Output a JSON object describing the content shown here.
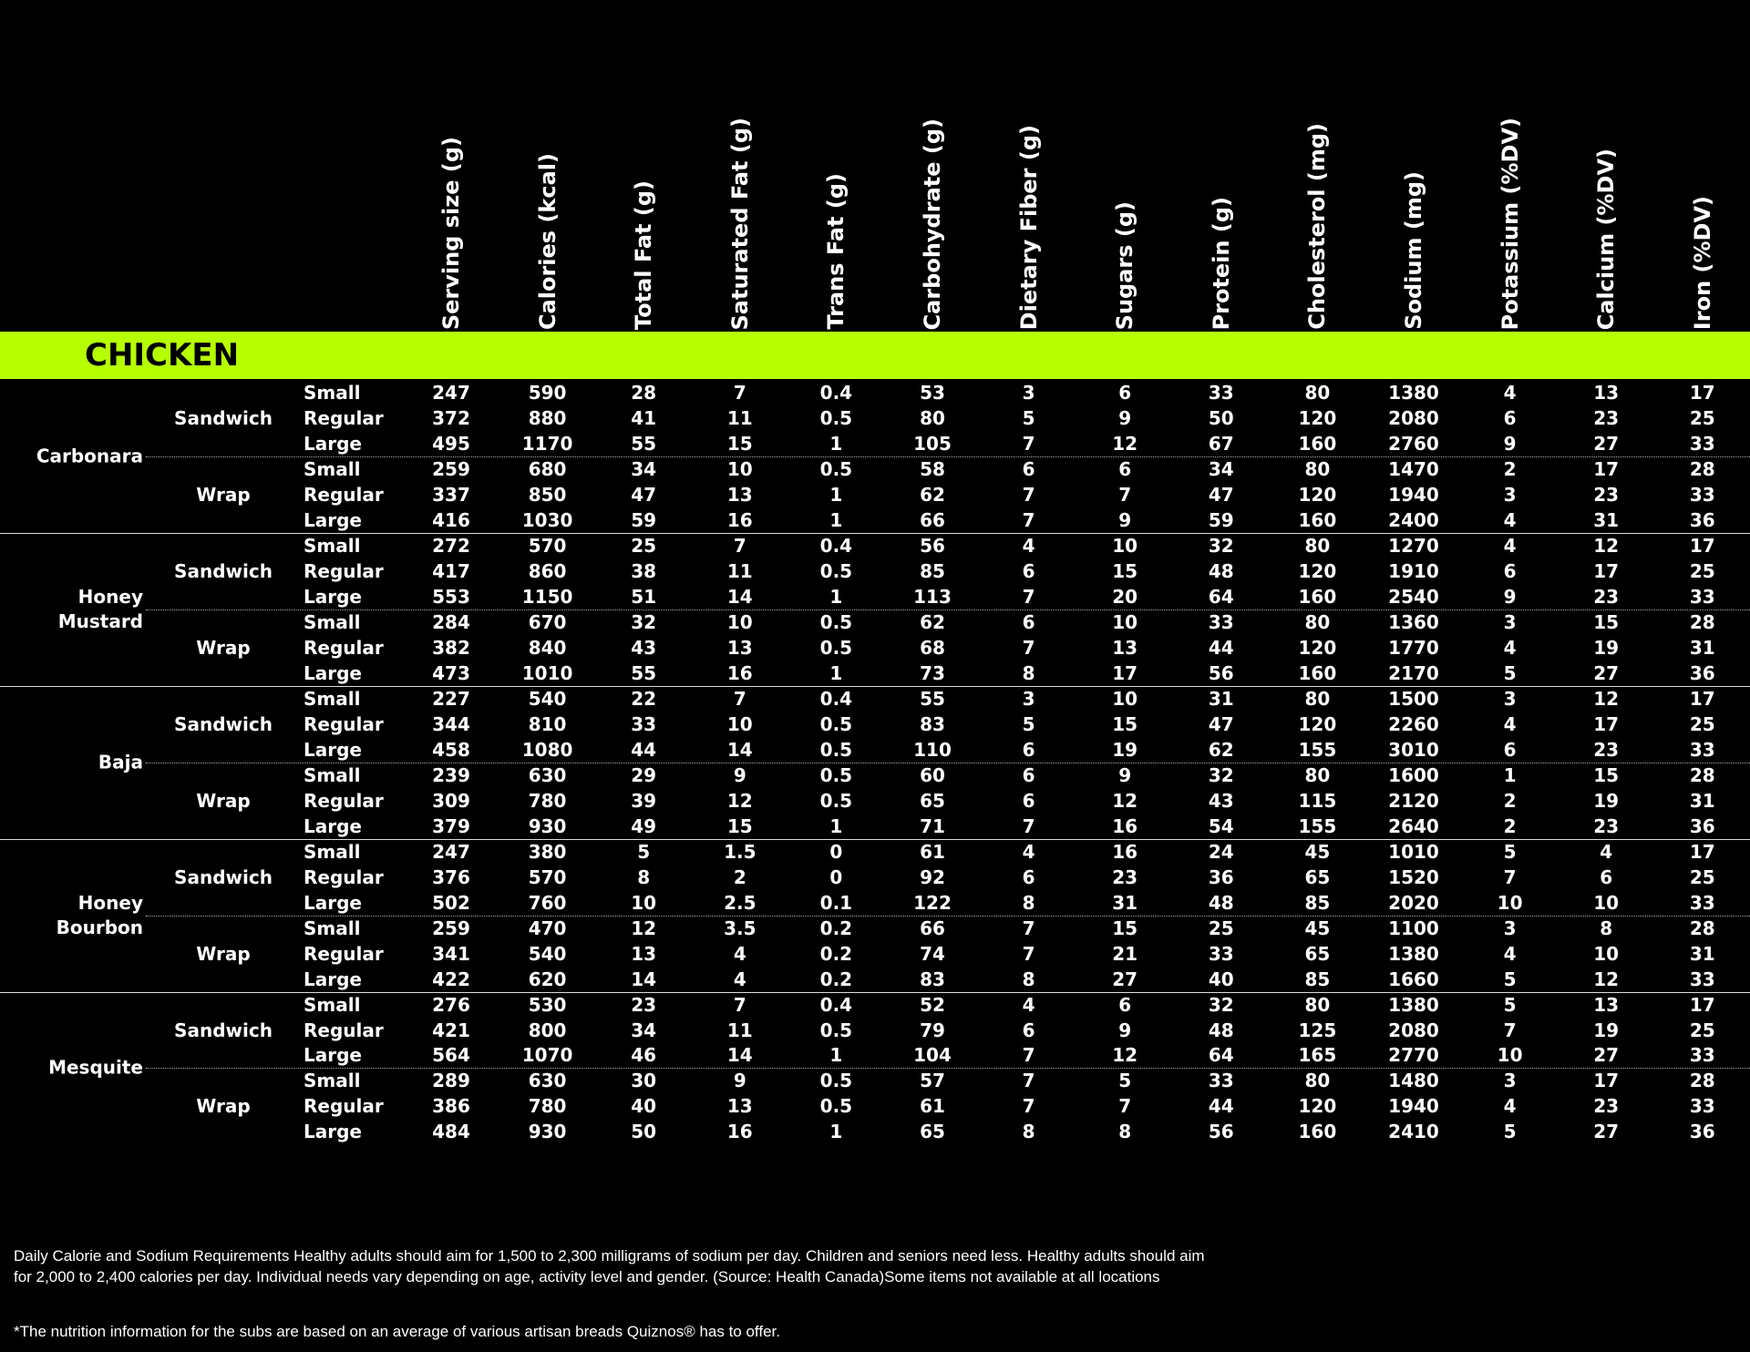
{
  "headers": [
    "Serving size (g)",
    "Calories (kcal)",
    "Total Fat (g)",
    "Saturated Fat (g)",
    "Trans Fat (g)",
    "Carbohydrate (g)",
    "Dietary Fiber (g)",
    "Sugars (g)",
    "Protein (g)",
    "Cholesterol (mg)",
    "Sodium (mg)",
    "Potassium (%DV)",
    "Calcium (%DV)",
    "Iron (%DV)"
  ],
  "section": "CHICKEN",
  "groups": [
    {
      "name": "Carbonara",
      "formats": [
        {
          "name": "Sandwich",
          "rows": [
            {
              "size": "Small",
              "values": [
                247,
                590,
                28,
                7,
                0.4,
                53,
                3,
                6,
                33,
                80,
                1380,
                4,
                13,
                17
              ]
            },
            {
              "size": "Regular",
              "values": [
                372,
                880,
                41,
                11,
                0.5,
                80,
                5,
                9,
                50,
                120,
                2080,
                6,
                23,
                25
              ]
            },
            {
              "size": "Large",
              "values": [
                495,
                1170,
                55,
                15,
                1,
                105,
                7,
                12,
                67,
                160,
                2760,
                9,
                27,
                33
              ]
            }
          ]
        },
        {
          "name": "Wrap",
          "rows": [
            {
              "size": "Small",
              "values": [
                259,
                680,
                34,
                10,
                0.5,
                58,
                6,
                6,
                34,
                80,
                1470,
                2,
                17,
                28
              ]
            },
            {
              "size": "Regular",
              "values": [
                337,
                850,
                47,
                13,
                1,
                62,
                7,
                7,
                47,
                120,
                1940,
                3,
                23,
                33
              ]
            },
            {
              "size": "Large",
              "values": [
                416,
                1030,
                59,
                16,
                1,
                66,
                7,
                9,
                59,
                160,
                2400,
                4,
                31,
                36
              ]
            }
          ]
        }
      ]
    },
    {
      "name": "Honey Mustard",
      "formats": [
        {
          "name": "Sandwich",
          "rows": [
            {
              "size": "Small",
              "values": [
                272,
                570,
                25,
                7,
                0.4,
                56,
                4,
                10,
                32,
                80,
                1270,
                4,
                12,
                17
              ]
            },
            {
              "size": "Regular",
              "values": [
                417,
                860,
                38,
                11,
                0.5,
                85,
                6,
                15,
                48,
                120,
                1910,
                6,
                17,
                25
              ]
            },
            {
              "size": "Large",
              "values": [
                553,
                1150,
                51,
                14,
                1,
                113,
                7,
                20,
                64,
                160,
                2540,
                9,
                23,
                33
              ]
            }
          ]
        },
        {
          "name": "Wrap",
          "rows": [
            {
              "size": "Small",
              "values": [
                284,
                670,
                32,
                10,
                0.5,
                62,
                6,
                10,
                33,
                80,
                1360,
                3,
                15,
                28
              ]
            },
            {
              "size": "Regular",
              "values": [
                382,
                840,
                43,
                13,
                0.5,
                68,
                7,
                13,
                44,
                120,
                1770,
                4,
                19,
                31
              ]
            },
            {
              "size": "Large",
              "values": [
                473,
                1010,
                55,
                16,
                1,
                73,
                8,
                17,
                56,
                160,
                2170,
                5,
                27,
                36
              ]
            }
          ]
        }
      ]
    },
    {
      "name": "Baja",
      "formats": [
        {
          "name": "Sandwich",
          "rows": [
            {
              "size": "Small",
              "values": [
                227,
                540,
                22,
                7,
                0.4,
                55,
                3,
                10,
                31,
                80,
                1500,
                3,
                12,
                17
              ]
            },
            {
              "size": "Regular",
              "values": [
                344,
                810,
                33,
                10,
                0.5,
                83,
                5,
                15,
                47,
                120,
                2260,
                4,
                17,
                25
              ]
            },
            {
              "size": "Large",
              "values": [
                458,
                1080,
                44,
                14,
                0.5,
                110,
                6,
                19,
                62,
                155,
                3010,
                6,
                23,
                33
              ]
            }
          ]
        },
        {
          "name": "Wrap",
          "rows": [
            {
              "size": "Small",
              "values": [
                239,
                630,
                29,
                9,
                0.5,
                60,
                6,
                9,
                32,
                80,
                1600,
                1,
                15,
                28
              ]
            },
            {
              "size": "Regular",
              "values": [
                309,
                780,
                39,
                12,
                0.5,
                65,
                6,
                12,
                43,
                115,
                2120,
                2,
                19,
                31
              ]
            },
            {
              "size": "Large",
              "values": [
                379,
                930,
                49,
                15,
                1,
                71,
                7,
                16,
                54,
                155,
                2640,
                2,
                23,
                36
              ]
            }
          ]
        }
      ]
    },
    {
      "name": "Honey Bourbon",
      "formats": [
        {
          "name": "Sandwich",
          "rows": [
            {
              "size": "Small",
              "values": [
                247,
                380,
                5,
                1.5,
                0,
                61,
                4,
                16,
                24,
                45,
                1010,
                5,
                4,
                17
              ]
            },
            {
              "size": "Regular",
              "values": [
                376,
                570,
                8,
                2,
                0,
                92,
                6,
                23,
                36,
                65,
                1520,
                7,
                6,
                25
              ]
            },
            {
              "size": "Large",
              "values": [
                502,
                760,
                10,
                2.5,
                0.1,
                122,
                8,
                31,
                48,
                85,
                2020,
                10,
                10,
                33
              ]
            }
          ]
        },
        {
          "name": "Wrap",
          "rows": [
            {
              "size": "Small",
              "values": [
                259,
                470,
                12,
                3.5,
                0.2,
                66,
                7,
                15,
                25,
                45,
                1100,
                3,
                8,
                28
              ]
            },
            {
              "size": "Regular",
              "values": [
                341,
                540,
                13,
                4,
                0.2,
                74,
                7,
                21,
                33,
                65,
                1380,
                4,
                10,
                31
              ]
            },
            {
              "size": "Large",
              "values": [
                422,
                620,
                14,
                4,
                0.2,
                83,
                8,
                27,
                40,
                85,
                1660,
                5,
                12,
                33
              ]
            }
          ]
        }
      ]
    },
    {
      "name": "Mesquite",
      "formats": [
        {
          "name": "Sandwich",
          "rows": [
            {
              "size": "Small",
              "values": [
                276,
                530,
                23,
                7,
                0.4,
                52,
                4,
                6,
                32,
                80,
                1380,
                5,
                13,
                17
              ]
            },
            {
              "size": "Regular",
              "values": [
                421,
                800,
                34,
                11,
                0.5,
                79,
                6,
                9,
                48,
                125,
                2080,
                7,
                19,
                25
              ]
            },
            {
              "size": "Large",
              "values": [
                564,
                1070,
                46,
                14,
                1,
                104,
                7,
                12,
                64,
                165,
                2770,
                10,
                27,
                33
              ]
            }
          ]
        },
        {
          "name": "Wrap",
          "rows": [
            {
              "size": "Small",
              "values": [
                289,
                630,
                30,
                9,
                0.5,
                57,
                7,
                5,
                33,
                80,
                1480,
                3,
                17,
                28
              ]
            },
            {
              "size": "Regular",
              "values": [
                386,
                780,
                40,
                13,
                0.5,
                61,
                7,
                7,
                44,
                120,
                1940,
                4,
                23,
                33
              ]
            },
            {
              "size": "Large",
              "values": [
                484,
                930,
                50,
                16,
                1,
                65,
                8,
                8,
                56,
                160,
                2410,
                5,
                27,
                36
              ]
            }
          ]
        }
      ]
    }
  ],
  "footnotes": [
    "Daily Calorie and Sodium Requirements Healthy adults should aim for 1,500 to 2,300 milligrams of sodium per day. Children and seniors need less. Healthy adults should aim for 2,000 to 2,400 calories per day. Individual needs vary depending on age, activity level and gender. (Source: Health Canada)Some items not available at all locations",
    "*The nutrition information for the subs are based on an average of various artisan breads Quiznos® has to offer."
  ]
}
